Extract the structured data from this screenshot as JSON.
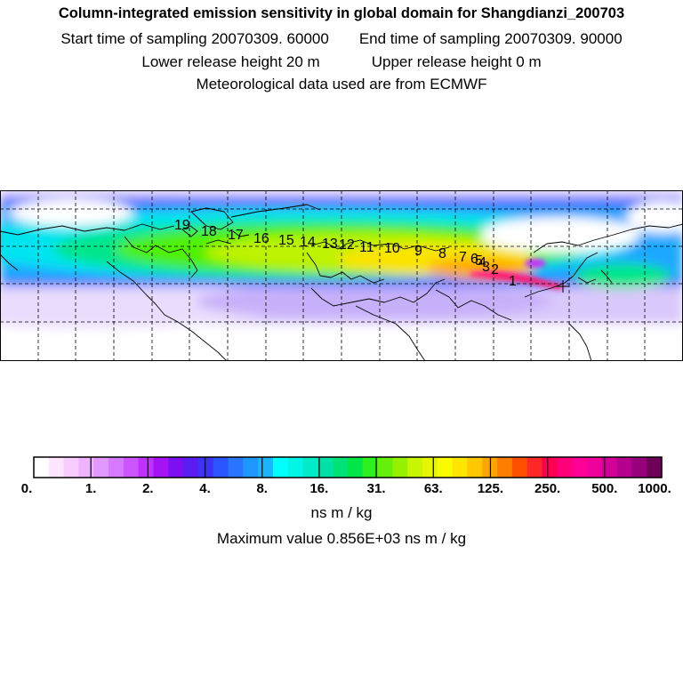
{
  "header": {
    "title": "Column-integrated emission sensitivity in global domain for Shangdianzi_200703",
    "start_sampling": "Start time of sampling 20070309. 60000",
    "end_sampling": "End time of sampling 20070309. 90000",
    "lower_release": "Lower release height   20 m",
    "upper_release": "Upper release height    0 m",
    "meteo": "Meteorological data used are from ECMWF"
  },
  "colorbar": {
    "tick_labels": [
      "0.",
      "1.",
      "2.",
      "4.",
      "8.",
      "16.",
      "31.",
      "63.",
      "125.",
      "250.",
      "500.",
      "1000."
    ],
    "units": "ns m / kg",
    "colors": [
      "#ffffff",
      "#fce6ff",
      "#f7ccff",
      "#f0b3ff",
      "#e199ff",
      "#d67aff",
      "#cc55ff",
      "#c030ff",
      "#a512f5",
      "#7d10f0",
      "#5a1cf0",
      "#3c33f5",
      "#2a55ff",
      "#2a75ff",
      "#1e96ff",
      "#1ab6ff",
      "#00ffff",
      "#00f5e6",
      "#00ebc8",
      "#00e1a5",
      "#00e178",
      "#00e646",
      "#2df01e",
      "#64f00a",
      "#96f000",
      "#c8f500",
      "#e6f500",
      "#fafa00",
      "#ffe600",
      "#ffc800",
      "#ffa500",
      "#ff7d00",
      "#ff5000",
      "#ff2828",
      "#ff0050",
      "#ff0078",
      "#ff0096",
      "#f0009b",
      "#d20096",
      "#b4008c",
      "#96007d",
      "#6e005a"
    ]
  },
  "maximum_value": "Maximum value  0.856E+03 ns m / kg",
  "trajectory_labels": [
    "1",
    "2",
    "3",
    "4",
    "5",
    "6",
    "7",
    "8",
    "9",
    "10",
    "11",
    "12",
    "13",
    "14",
    "15",
    "16",
    "17",
    "18",
    "19"
  ],
  "plume_colors": {
    "background": "#f6f0ff",
    "south_band": "#cfc2fa",
    "high": "#ff2080",
    "core": "#ff0050"
  }
}
